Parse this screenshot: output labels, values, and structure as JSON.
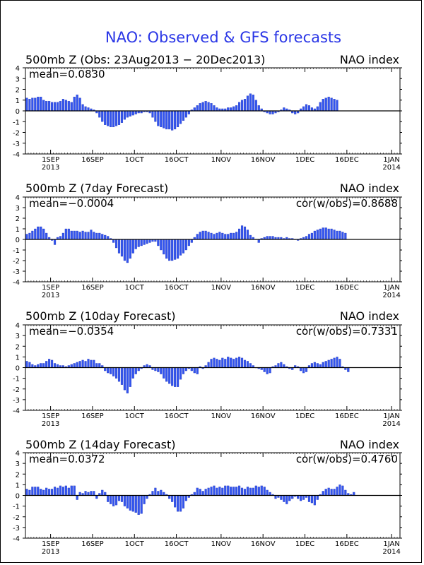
{
  "figure": {
    "title": "NAO: Observed & GFS forecasts",
    "colors": {
      "title": "#2a36e6",
      "bar": "#3355ee",
      "bar_edge": "#1f2fb0",
      "axis": "#000000",
      "text": "#000000"
    }
  },
  "axis_common": {
    "y_ticks": [
      "4",
      "3",
      "2",
      "1",
      "0",
      "-1",
      "-2",
      "-3",
      "-4"
    ],
    "ylim": [
      -4,
      4
    ],
    "x_tick_labels": [
      {
        "day": 9,
        "line1": "1SEP",
        "line2": "2013"
      },
      {
        "day": 24,
        "line1": "16SEP",
        "line2": ""
      },
      {
        "day": 39,
        "line1": "1OCT",
        "line2": ""
      },
      {
        "day": 54,
        "line1": "16OCT",
        "line2": ""
      },
      {
        "day": 70,
        "line1": "1NOV",
        "line2": ""
      },
      {
        "day": 85,
        "line1": "16NOV",
        "line2": ""
      },
      {
        "day": 100,
        "line1": "1DEC",
        "line2": ""
      },
      {
        "day": 115,
        "line1": "16DEC",
        "line2": ""
      },
      {
        "day": 131,
        "line1": "1JAN",
        "line2": "2014"
      }
    ],
    "xlim_days": [
      0,
      134
    ],
    "zero_line": true
  },
  "panels": [
    {
      "title_left": "500mb Z (Obs: 23Aug2013 − 20Dec2013)",
      "title_right": "NAO index",
      "stat_left": "mean=0.0830",
      "stat_right": ""
    },
    {
      "title_left": "500mb Z (7day Forecast)",
      "title_right": "NAO index",
      "stat_left": "mean=−0.0004",
      "stat_right": "cor(w/obs)=0.8688"
    },
    {
      "title_left": "500mb Z (10day Forecast)",
      "title_right": "NAO index",
      "stat_left": "mean=−0.0354",
      "stat_right": "cor(w/obs)=0.7331"
    },
    {
      "title_left": "500mb Z (14day Forecast)",
      "title_right": "NAO index",
      "stat_left": "mean=0.0372",
      "stat_right": "cor(w/obs)=0.4760"
    }
  ],
  "chart_data": [
    {
      "type": "bar",
      "title": "500mb Z (Obs: 23Aug2013 − 20Dec2013)",
      "ylabel": "",
      "ylim": [
        -4,
        4
      ],
      "x_start_date": "23Aug2013",
      "series": [
        {
          "name": "",
          "values": [
            1.2,
            1.1,
            1.2,
            1.2,
            1.3,
            1.3,
            1.0,
            0.9,
            0.9,
            0.8,
            0.8,
            0.8,
            0.9,
            1.1,
            1.0,
            0.9,
            0.8,
            1.3,
            1.5,
            1.2,
            0.6,
            0.4,
            0.3,
            0.2,
            0.1,
            -0.2,
            -0.6,
            -1.0,
            -1.3,
            -1.4,
            -1.5,
            -1.5,
            -1.4,
            -1.3,
            -1.1,
            -0.8,
            -0.6,
            -0.5,
            -0.4,
            -0.3,
            -0.2,
            -0.2,
            -0.1,
            -0.1,
            -0.2,
            -0.6,
            -1.0,
            -1.4,
            -1.5,
            -1.6,
            -1.7,
            -1.7,
            -1.8,
            -1.7,
            -1.5,
            -1.2,
            -0.9,
            -0.6,
            -0.3,
            0.1,
            0.3,
            0.5,
            0.7,
            0.8,
            0.9,
            0.8,
            0.7,
            0.5,
            0.3,
            0.2,
            0.2,
            0.2,
            0.3,
            0.3,
            0.4,
            0.5,
            0.8,
            1.0,
            1.1,
            1.4,
            1.6,
            1.5,
            1.0,
            0.5,
            0.2,
            -0.1,
            -0.2,
            -0.3,
            -0.3,
            -0.2,
            -0.1,
            0.1,
            0.3,
            0.2,
            0.1,
            -0.2,
            -0.3,
            -0.2,
            0.2,
            0.4,
            0.6,
            0.5,
            0.3,
            0.2,
            0.4,
            0.8,
            1.1,
            1.2,
            1.3,
            1.2,
            1.1,
            1.0
          ]
        }
      ]
    },
    {
      "type": "bar",
      "title": "500mb Z (7day Forecast)",
      "ylabel": "",
      "ylim": [
        -4,
        4
      ],
      "x_start_date": "23Aug2013",
      "series": [
        {
          "name": "",
          "values": [
            0.5,
            0.6,
            0.8,
            1.0,
            1.2,
            1.2,
            1.0,
            0.6,
            0.2,
            -0.1,
            -0.5,
            0.2,
            0.3,
            0.6,
            1.0,
            1.0,
            0.8,
            0.8,
            0.8,
            0.7,
            0.8,
            0.7,
            0.7,
            0.9,
            0.7,
            0.6,
            0.6,
            0.5,
            0.4,
            0.3,
            0.1,
            -0.3,
            -0.8,
            -1.3,
            -1.6,
            -2.0,
            -2.2,
            -1.8,
            -1.3,
            -0.9,
            -0.7,
            -0.6,
            -0.5,
            -0.4,
            -0.3,
            -0.2,
            -0.2,
            -0.6,
            -1.0,
            -1.4,
            -1.8,
            -2.0,
            -2.0,
            -1.9,
            -1.8,
            -1.5,
            -1.3,
            -1.0,
            -0.6,
            -0.3,
            0.2,
            0.5,
            0.7,
            0.8,
            0.8,
            0.7,
            0.6,
            0.5,
            0.6,
            0.7,
            0.6,
            0.5,
            0.5,
            0.6,
            0.6,
            0.7,
            1.0,
            1.3,
            1.2,
            0.9,
            0.4,
            0.2,
            0.0,
            -0.3,
            0.1,
            0.2,
            0.3,
            0.3,
            0.3,
            0.2,
            0.2,
            0.2,
            0.1,
            0.2,
            0.1,
            0.1,
            0.0,
            -0.1,
            0.1,
            0.2,
            0.3,
            0.5,
            0.6,
            0.8,
            0.9,
            1.0,
            1.1,
            1.1,
            1.0,
            1.0,
            0.9,
            0.8,
            0.8,
            0.7,
            0.6
          ]
        }
      ]
    },
    {
      "type": "bar",
      "title": "500mb Z (10day Forecast)",
      "ylabel": "",
      "ylim": [
        -4,
        4
      ],
      "x_start_date": "23Aug2013",
      "series": [
        {
          "name": "",
          "values": [
            0.6,
            0.5,
            0.3,
            0.2,
            0.3,
            0.4,
            0.4,
            0.6,
            0.8,
            0.7,
            0.4,
            0.3,
            0.2,
            0.2,
            0.1,
            0.2,
            0.3,
            0.4,
            0.5,
            0.6,
            0.7,
            0.6,
            0.8,
            0.7,
            0.7,
            0.4,
            0.4,
            0.2,
            -0.3,
            -0.5,
            -0.6,
            -0.8,
            -1.0,
            -1.3,
            -1.6,
            -2.1,
            -2.4,
            -1.8,
            -1.0,
            -0.6,
            -0.3,
            -0.1,
            0.2,
            0.3,
            0.2,
            -0.2,
            -0.3,
            -0.4,
            -0.6,
            -1.0,
            -1.3,
            -1.5,
            -1.7,
            -1.8,
            -1.8,
            -1.1,
            -0.6,
            -0.3,
            -0.1,
            -0.3,
            -0.5,
            -0.6,
            0.1,
            -0.1,
            0.2,
            0.5,
            0.8,
            0.9,
            0.8,
            0.7,
            0.9,
            0.8,
            1.0,
            0.9,
            0.8,
            0.9,
            1.0,
            0.9,
            0.7,
            0.6,
            0.4,
            0.2,
            0.0,
            -0.1,
            -0.2,
            -0.4,
            -0.6,
            -0.5,
            0.1,
            0.2,
            0.4,
            0.5,
            0.3,
            0.1,
            -0.1,
            -0.2,
            0.2,
            0.1,
            -0.3,
            -0.5,
            -0.4,
            0.2,
            0.4,
            0.5,
            0.4,
            0.3,
            0.5,
            0.6,
            0.7,
            0.8,
            0.9,
            1.0,
            0.8,
            0.1,
            -0.2,
            -0.4
          ]
        }
      ]
    },
    {
      "type": "bar",
      "title": "500mb Z (14day Forecast)",
      "ylabel": "",
      "ylim": [
        -4,
        4
      ],
      "x_start_date": "23Aug2013",
      "series": [
        {
          "name": "",
          "values": [
            0.6,
            0.5,
            0.8,
            0.8,
            0.8,
            0.6,
            0.5,
            0.7,
            0.6,
            0.6,
            0.8,
            0.7,
            0.9,
            0.8,
            0.9,
            0.7,
            0.9,
            0.9,
            -0.4,
            0.3,
            0.2,
            0.4,
            0.3,
            0.4,
            0.4,
            -0.3,
            0.2,
            0.5,
            0.3,
            -0.6,
            -0.8,
            -1.0,
            -0.9,
            -0.5,
            -0.6,
            -1.0,
            -1.2,
            -1.4,
            -1.5,
            -1.6,
            -1.8,
            -1.7,
            -0.8,
            -0.3,
            0.1,
            0.4,
            0.7,
            0.4,
            0.5,
            0.3,
            0.1,
            -0.3,
            -0.6,
            -1.1,
            -1.5,
            -1.5,
            -1.2,
            -0.5,
            -0.2,
            0.1,
            0.3,
            0.7,
            0.6,
            0.4,
            0.6,
            0.7,
            0.8,
            0.9,
            0.7,
            0.8,
            0.7,
            0.9,
            0.9,
            0.8,
            0.8,
            0.8,
            0.9,
            0.7,
            0.6,
            0.8,
            0.7,
            0.7,
            0.9,
            0.8,
            0.9,
            0.8,
            0.5,
            0.3,
            0.1,
            -0.3,
            -0.2,
            -0.4,
            -0.6,
            -0.8,
            -0.5,
            -0.3,
            -0.1,
            -0.3,
            -0.5,
            -0.4,
            -0.2,
            -0.6,
            -0.7,
            -0.9,
            -0.4,
            0.1,
            0.4,
            0.6,
            0.7,
            0.6,
            0.6,
            0.8,
            1.0,
            0.9,
            0.5,
            0.2,
            0.1,
            0.3
          ]
        }
      ]
    }
  ]
}
